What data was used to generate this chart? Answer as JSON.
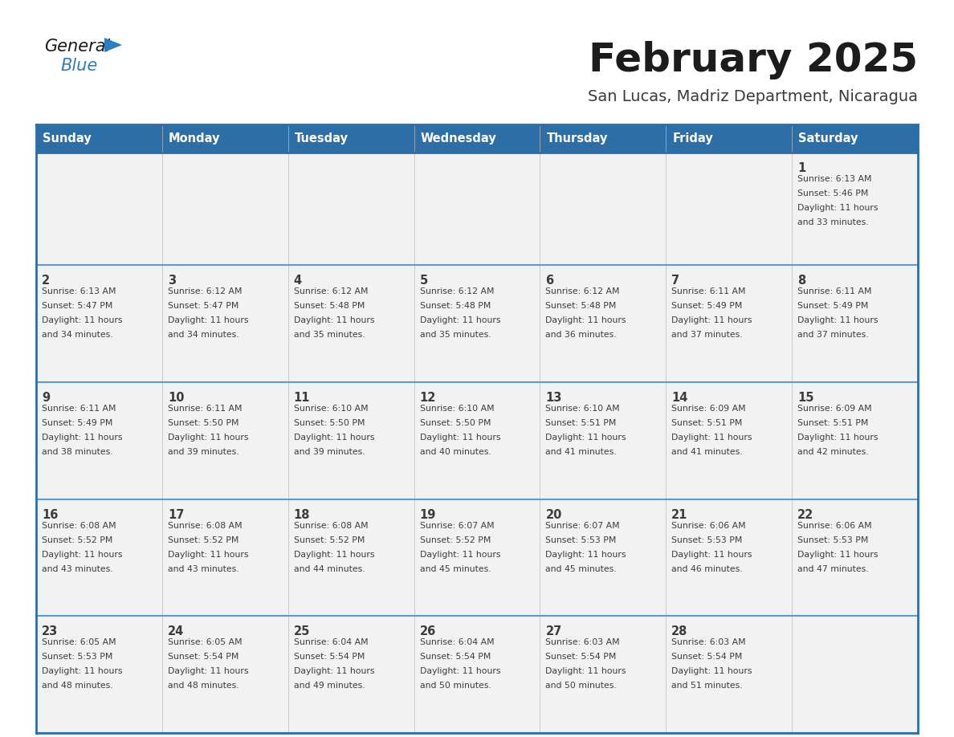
{
  "title": "February 2025",
  "subtitle": "San Lucas, Madriz Department, Nicaragua",
  "header_bg": "#2E6EA6",
  "header_text_color": "#FFFFFF",
  "cell_bg_odd": "#F2F2F2",
  "cell_bg_even": "#FFFFFF",
  "border_color": "#2E6EA6",
  "inner_border_color": "#5B9BD5",
  "text_color": "#3C3C3C",
  "days_of_week": [
    "Sunday",
    "Monday",
    "Tuesday",
    "Wednesday",
    "Thursday",
    "Friday",
    "Saturday"
  ],
  "calendar_data": [
    [
      {
        "day": "",
        "info": ""
      },
      {
        "day": "",
        "info": ""
      },
      {
        "day": "",
        "info": ""
      },
      {
        "day": "",
        "info": ""
      },
      {
        "day": "",
        "info": ""
      },
      {
        "day": "",
        "info": ""
      },
      {
        "day": "1",
        "info": "Sunrise: 6:13 AM\nSunset: 5:46 PM\nDaylight: 11 hours\nand 33 minutes."
      }
    ],
    [
      {
        "day": "2",
        "info": "Sunrise: 6:13 AM\nSunset: 5:47 PM\nDaylight: 11 hours\nand 34 minutes."
      },
      {
        "day": "3",
        "info": "Sunrise: 6:12 AM\nSunset: 5:47 PM\nDaylight: 11 hours\nand 34 minutes."
      },
      {
        "day": "4",
        "info": "Sunrise: 6:12 AM\nSunset: 5:48 PM\nDaylight: 11 hours\nand 35 minutes."
      },
      {
        "day": "5",
        "info": "Sunrise: 6:12 AM\nSunset: 5:48 PM\nDaylight: 11 hours\nand 35 minutes."
      },
      {
        "day": "6",
        "info": "Sunrise: 6:12 AM\nSunset: 5:48 PM\nDaylight: 11 hours\nand 36 minutes."
      },
      {
        "day": "7",
        "info": "Sunrise: 6:11 AM\nSunset: 5:49 PM\nDaylight: 11 hours\nand 37 minutes."
      },
      {
        "day": "8",
        "info": "Sunrise: 6:11 AM\nSunset: 5:49 PM\nDaylight: 11 hours\nand 37 minutes."
      }
    ],
    [
      {
        "day": "9",
        "info": "Sunrise: 6:11 AM\nSunset: 5:49 PM\nDaylight: 11 hours\nand 38 minutes."
      },
      {
        "day": "10",
        "info": "Sunrise: 6:11 AM\nSunset: 5:50 PM\nDaylight: 11 hours\nand 39 minutes."
      },
      {
        "day": "11",
        "info": "Sunrise: 6:10 AM\nSunset: 5:50 PM\nDaylight: 11 hours\nand 39 minutes."
      },
      {
        "day": "12",
        "info": "Sunrise: 6:10 AM\nSunset: 5:50 PM\nDaylight: 11 hours\nand 40 minutes."
      },
      {
        "day": "13",
        "info": "Sunrise: 6:10 AM\nSunset: 5:51 PM\nDaylight: 11 hours\nand 41 minutes."
      },
      {
        "day": "14",
        "info": "Sunrise: 6:09 AM\nSunset: 5:51 PM\nDaylight: 11 hours\nand 41 minutes."
      },
      {
        "day": "15",
        "info": "Sunrise: 6:09 AM\nSunset: 5:51 PM\nDaylight: 11 hours\nand 42 minutes."
      }
    ],
    [
      {
        "day": "16",
        "info": "Sunrise: 6:08 AM\nSunset: 5:52 PM\nDaylight: 11 hours\nand 43 minutes."
      },
      {
        "day": "17",
        "info": "Sunrise: 6:08 AM\nSunset: 5:52 PM\nDaylight: 11 hours\nand 43 minutes."
      },
      {
        "day": "18",
        "info": "Sunrise: 6:08 AM\nSunset: 5:52 PM\nDaylight: 11 hours\nand 44 minutes."
      },
      {
        "day": "19",
        "info": "Sunrise: 6:07 AM\nSunset: 5:52 PM\nDaylight: 11 hours\nand 45 minutes."
      },
      {
        "day": "20",
        "info": "Sunrise: 6:07 AM\nSunset: 5:53 PM\nDaylight: 11 hours\nand 45 minutes."
      },
      {
        "day": "21",
        "info": "Sunrise: 6:06 AM\nSunset: 5:53 PM\nDaylight: 11 hours\nand 46 minutes."
      },
      {
        "day": "22",
        "info": "Sunrise: 6:06 AM\nSunset: 5:53 PM\nDaylight: 11 hours\nand 47 minutes."
      }
    ],
    [
      {
        "day": "23",
        "info": "Sunrise: 6:05 AM\nSunset: 5:53 PM\nDaylight: 11 hours\nand 48 minutes."
      },
      {
        "day": "24",
        "info": "Sunrise: 6:05 AM\nSunset: 5:54 PM\nDaylight: 11 hours\nand 48 minutes."
      },
      {
        "day": "25",
        "info": "Sunrise: 6:04 AM\nSunset: 5:54 PM\nDaylight: 11 hours\nand 49 minutes."
      },
      {
        "day": "26",
        "info": "Sunrise: 6:04 AM\nSunset: 5:54 PM\nDaylight: 11 hours\nand 50 minutes."
      },
      {
        "day": "27",
        "info": "Sunrise: 6:03 AM\nSunset: 5:54 PM\nDaylight: 11 hours\nand 50 minutes."
      },
      {
        "day": "28",
        "info": "Sunrise: 6:03 AM\nSunset: 5:54 PM\nDaylight: 11 hours\nand 51 minutes."
      },
      {
        "day": "",
        "info": ""
      }
    ]
  ],
  "logo_general_color": "#1C1C1C",
  "logo_blue_color": "#2E7EC2",
  "title_color": "#1C1C1C",
  "subtitle_color": "#3C3C3C"
}
